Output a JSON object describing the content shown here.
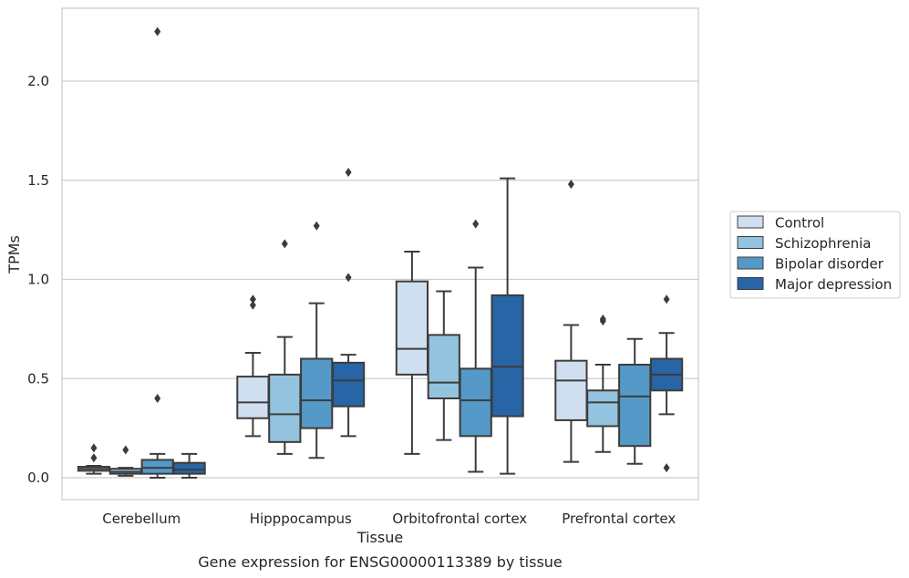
{
  "chart_data": {
    "type": "box",
    "xlabel": "Tissue",
    "ylabel": "TPMs",
    "caption": "Gene expression for ENSG00000113389 by tissue",
    "categories": [
      "Cerebellum",
      "Hipppocampus",
      "Orbitofrontal cortex",
      "Prefrontal cortex"
    ],
    "ylim": [
      -0.11,
      2.36
    ],
    "yticks": [
      {
        "value": 0.0,
        "label": "0.0"
      },
      {
        "value": 0.5,
        "label": "0.5"
      },
      {
        "value": 1.0,
        "label": "1.0"
      },
      {
        "value": 1.5,
        "label": "1.5"
      },
      {
        "value": 2.0,
        "label": "2.0"
      }
    ],
    "grid": "horizontal",
    "legend_position": "right",
    "series": [
      {
        "name": "Control",
        "color": "#cfdfef",
        "boxes": [
          {
            "whislo": 0.02,
            "q1": 0.035,
            "med": 0.045,
            "q3": 0.055,
            "whishi": 0.06,
            "fliers": [
              0.1,
              0.15
            ]
          },
          {
            "whislo": 0.21,
            "q1": 0.3,
            "med": 0.38,
            "q3": 0.51,
            "whishi": 0.63,
            "fliers": [
              0.87,
              0.9
            ]
          },
          {
            "whislo": 0.12,
            "q1": 0.52,
            "med": 0.65,
            "q3": 0.99,
            "whishi": 1.14,
            "fliers": []
          },
          {
            "whislo": 0.08,
            "q1": 0.29,
            "med": 0.49,
            "q3": 0.59,
            "whishi": 0.77,
            "fliers": [
              1.48
            ]
          }
        ]
      },
      {
        "name": "Schizophrenia",
        "color": "#93c3de",
        "boxes": [
          {
            "whislo": 0.01,
            "q1": 0.02,
            "med": 0.03,
            "q3": 0.045,
            "whishi": 0.05,
            "fliers": [
              0.14
            ]
          },
          {
            "whislo": 0.12,
            "q1": 0.18,
            "med": 0.32,
            "q3": 0.52,
            "whishi": 0.71,
            "fliers": [
              1.18
            ]
          },
          {
            "whislo": 0.19,
            "q1": 0.4,
            "med": 0.48,
            "q3": 0.72,
            "whishi": 0.94,
            "fliers": []
          },
          {
            "whislo": 0.13,
            "q1": 0.26,
            "med": 0.38,
            "q3": 0.44,
            "whishi": 0.57,
            "fliers": [
              0.79,
              0.8
            ]
          }
        ]
      },
      {
        "name": "Bipolar disorder",
        "color": "#5499c7",
        "boxes": [
          {
            "whislo": 0.0,
            "q1": 0.02,
            "med": 0.05,
            "q3": 0.09,
            "whishi": 0.12,
            "fliers": [
              0.4,
              2.25
            ]
          },
          {
            "whislo": 0.1,
            "q1": 0.25,
            "med": 0.39,
            "q3": 0.6,
            "whishi": 0.88,
            "fliers": [
              1.27
            ]
          },
          {
            "whislo": 0.03,
            "q1": 0.21,
            "med": 0.39,
            "q3": 0.55,
            "whishi": 1.06,
            "fliers": [
              1.28
            ]
          },
          {
            "whislo": 0.07,
            "q1": 0.16,
            "med": 0.41,
            "q3": 0.57,
            "whishi": 0.7,
            "fliers": []
          }
        ]
      },
      {
        "name": "Major depression",
        "color": "#2765a6",
        "boxes": [
          {
            "whislo": 0.0,
            "q1": 0.02,
            "med": 0.04,
            "q3": 0.075,
            "whishi": 0.12,
            "fliers": []
          },
          {
            "whislo": 0.21,
            "q1": 0.36,
            "med": 0.49,
            "q3": 0.58,
            "whishi": 0.62,
            "fliers": [
              1.01,
              1.54
            ]
          },
          {
            "whislo": 0.02,
            "q1": 0.31,
            "med": 0.56,
            "q3": 0.92,
            "whishi": 1.51,
            "fliers": []
          },
          {
            "whislo": 0.32,
            "q1": 0.44,
            "med": 0.52,
            "q3": 0.6,
            "whishi": 0.73,
            "fliers": [
              0.05,
              0.9
            ]
          }
        ]
      }
    ]
  }
}
